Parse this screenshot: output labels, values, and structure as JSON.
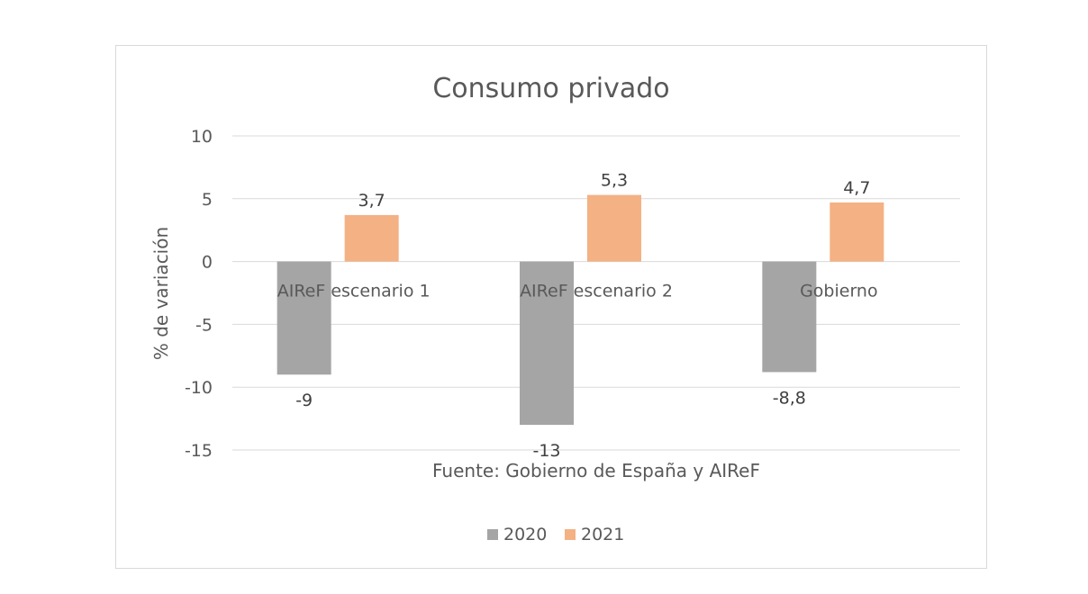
{
  "colors": {
    "series_2020": "#a5a5a5",
    "series_2021": "#f4b183",
    "gridline": "#d9d9d9",
    "text": "#595959",
    "frame_border": "#d9d9d9"
  },
  "chart_data": {
    "type": "bar",
    "title": "Consumo privado",
    "ylabel": "% de variación",
    "xlabel": "Fuente: Gobierno de España y AIReF",
    "categories": [
      "AIReF escenario 1",
      "AIReF escenario 2",
      "Gobierno"
    ],
    "series": [
      {
        "name": "2020",
        "values": [
          -9,
          -13,
          -8.8
        ],
        "labels": [
          "-9",
          "-13",
          "-8,8"
        ]
      },
      {
        "name": "2021",
        "values": [
          3.7,
          5.3,
          4.7
        ],
        "labels": [
          "3,7",
          "5,3",
          "4,7"
        ]
      }
    ],
    "ylim": [
      -15,
      10
    ],
    "yticks": [
      10,
      5,
      0,
      -5,
      -10,
      -15
    ],
    "grid": true,
    "legend_position": "bottom"
  }
}
